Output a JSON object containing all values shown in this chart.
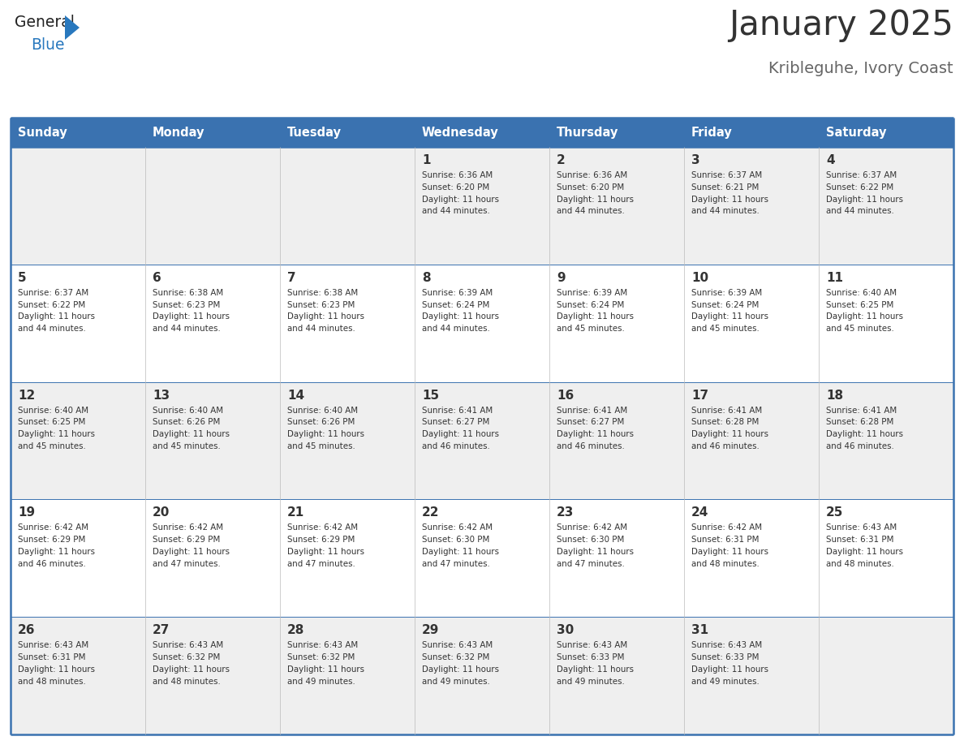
{
  "title": "January 2025",
  "subtitle": "Kribleguhe, Ivory Coast",
  "days_of_week": [
    "Sunday",
    "Monday",
    "Tuesday",
    "Wednesday",
    "Thursday",
    "Friday",
    "Saturday"
  ],
  "header_bg_color": "#3A72B0",
  "header_text_color": "#FFFFFF",
  "row_bg_even": "#EFEFEF",
  "row_bg_odd": "#FFFFFF",
  "cell_text_color": "#333333",
  "day_num_color": "#333333",
  "border_color": "#3A72B0",
  "title_color": "#333333",
  "subtitle_color": "#666666",
  "logo_general_color": "#222222",
  "logo_blue_color": "#2878BE",
  "weeks": [
    [
      {
        "day": null,
        "info": null
      },
      {
        "day": null,
        "info": null
      },
      {
        "day": null,
        "info": null
      },
      {
        "day": 1,
        "info": {
          "sunrise": "6:36 AM",
          "sunset": "6:20 PM",
          "daylight_h": "11 hours",
          "daylight_m": "44 minutes."
        }
      },
      {
        "day": 2,
        "info": {
          "sunrise": "6:36 AM",
          "sunset": "6:20 PM",
          "daylight_h": "11 hours",
          "daylight_m": "44 minutes."
        }
      },
      {
        "day": 3,
        "info": {
          "sunrise": "6:37 AM",
          "sunset": "6:21 PM",
          "daylight_h": "11 hours",
          "daylight_m": "44 minutes."
        }
      },
      {
        "day": 4,
        "info": {
          "sunrise": "6:37 AM",
          "sunset": "6:22 PM",
          "daylight_h": "11 hours",
          "daylight_m": "44 minutes."
        }
      }
    ],
    [
      {
        "day": 5,
        "info": {
          "sunrise": "6:37 AM",
          "sunset": "6:22 PM",
          "daylight_h": "11 hours",
          "daylight_m": "44 minutes."
        }
      },
      {
        "day": 6,
        "info": {
          "sunrise": "6:38 AM",
          "sunset": "6:23 PM",
          "daylight_h": "11 hours",
          "daylight_m": "44 minutes."
        }
      },
      {
        "day": 7,
        "info": {
          "sunrise": "6:38 AM",
          "sunset": "6:23 PM",
          "daylight_h": "11 hours",
          "daylight_m": "44 minutes."
        }
      },
      {
        "day": 8,
        "info": {
          "sunrise": "6:39 AM",
          "sunset": "6:24 PM",
          "daylight_h": "11 hours",
          "daylight_m": "44 minutes."
        }
      },
      {
        "day": 9,
        "info": {
          "sunrise": "6:39 AM",
          "sunset": "6:24 PM",
          "daylight_h": "11 hours",
          "daylight_m": "45 minutes."
        }
      },
      {
        "day": 10,
        "info": {
          "sunrise": "6:39 AM",
          "sunset": "6:24 PM",
          "daylight_h": "11 hours",
          "daylight_m": "45 minutes."
        }
      },
      {
        "day": 11,
        "info": {
          "sunrise": "6:40 AM",
          "sunset": "6:25 PM",
          "daylight_h": "11 hours",
          "daylight_m": "45 minutes."
        }
      }
    ],
    [
      {
        "day": 12,
        "info": {
          "sunrise": "6:40 AM",
          "sunset": "6:25 PM",
          "daylight_h": "11 hours",
          "daylight_m": "45 minutes."
        }
      },
      {
        "day": 13,
        "info": {
          "sunrise": "6:40 AM",
          "sunset": "6:26 PM",
          "daylight_h": "11 hours",
          "daylight_m": "45 minutes."
        }
      },
      {
        "day": 14,
        "info": {
          "sunrise": "6:40 AM",
          "sunset": "6:26 PM",
          "daylight_h": "11 hours",
          "daylight_m": "45 minutes."
        }
      },
      {
        "day": 15,
        "info": {
          "sunrise": "6:41 AM",
          "sunset": "6:27 PM",
          "daylight_h": "11 hours",
          "daylight_m": "46 minutes."
        }
      },
      {
        "day": 16,
        "info": {
          "sunrise": "6:41 AM",
          "sunset": "6:27 PM",
          "daylight_h": "11 hours",
          "daylight_m": "46 minutes."
        }
      },
      {
        "day": 17,
        "info": {
          "sunrise": "6:41 AM",
          "sunset": "6:28 PM",
          "daylight_h": "11 hours",
          "daylight_m": "46 minutes."
        }
      },
      {
        "day": 18,
        "info": {
          "sunrise": "6:41 AM",
          "sunset": "6:28 PM",
          "daylight_h": "11 hours",
          "daylight_m": "46 minutes."
        }
      }
    ],
    [
      {
        "day": 19,
        "info": {
          "sunrise": "6:42 AM",
          "sunset": "6:29 PM",
          "daylight_h": "11 hours",
          "daylight_m": "46 minutes."
        }
      },
      {
        "day": 20,
        "info": {
          "sunrise": "6:42 AM",
          "sunset": "6:29 PM",
          "daylight_h": "11 hours",
          "daylight_m": "47 minutes."
        }
      },
      {
        "day": 21,
        "info": {
          "sunrise": "6:42 AM",
          "sunset": "6:29 PM",
          "daylight_h": "11 hours",
          "daylight_m": "47 minutes."
        }
      },
      {
        "day": 22,
        "info": {
          "sunrise": "6:42 AM",
          "sunset": "6:30 PM",
          "daylight_h": "11 hours",
          "daylight_m": "47 minutes."
        }
      },
      {
        "day": 23,
        "info": {
          "sunrise": "6:42 AM",
          "sunset": "6:30 PM",
          "daylight_h": "11 hours",
          "daylight_m": "47 minutes."
        }
      },
      {
        "day": 24,
        "info": {
          "sunrise": "6:42 AM",
          "sunset": "6:31 PM",
          "daylight_h": "11 hours",
          "daylight_m": "48 minutes."
        }
      },
      {
        "day": 25,
        "info": {
          "sunrise": "6:43 AM",
          "sunset": "6:31 PM",
          "daylight_h": "11 hours",
          "daylight_m": "48 minutes."
        }
      }
    ],
    [
      {
        "day": 26,
        "info": {
          "sunrise": "6:43 AM",
          "sunset": "6:31 PM",
          "daylight_h": "11 hours",
          "daylight_m": "48 minutes."
        }
      },
      {
        "day": 27,
        "info": {
          "sunrise": "6:43 AM",
          "sunset": "6:32 PM",
          "daylight_h": "11 hours",
          "daylight_m": "48 minutes."
        }
      },
      {
        "day": 28,
        "info": {
          "sunrise": "6:43 AM",
          "sunset": "6:32 PM",
          "daylight_h": "11 hours",
          "daylight_m": "49 minutes."
        }
      },
      {
        "day": 29,
        "info": {
          "sunrise": "6:43 AM",
          "sunset": "6:32 PM",
          "daylight_h": "11 hours",
          "daylight_m": "49 minutes."
        }
      },
      {
        "day": 30,
        "info": {
          "sunrise": "6:43 AM",
          "sunset": "6:33 PM",
          "daylight_h": "11 hours",
          "daylight_m": "49 minutes."
        }
      },
      {
        "day": 31,
        "info": {
          "sunrise": "6:43 AM",
          "sunset": "6:33 PM",
          "daylight_h": "11 hours",
          "daylight_m": "49 minutes."
        }
      },
      {
        "day": null,
        "info": null
      }
    ]
  ]
}
